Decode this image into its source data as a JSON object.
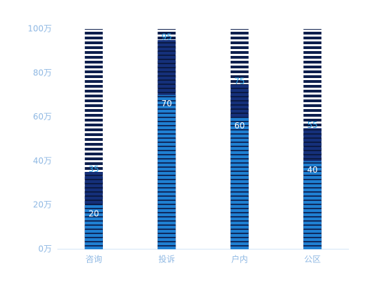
{
  "chart_data": {
    "type": "bar",
    "categories": [
      "咨询",
      "投诉",
      "户内",
      "公区"
    ],
    "series": [
      {
        "color": "#15307a",
        "stripe_color": "#0b1a45",
        "label_color": "#2aa2ea",
        "label_position": "top",
        "values": [
          35,
          95,
          75,
          55
        ]
      },
      {
        "color": "#1f80d2",
        "stripe_color": "#0f2a5e",
        "label_color": "#ffffff",
        "label_position": "inside",
        "values": [
          20,
          70,
          60,
          40
        ]
      }
    ],
    "background_bar_color": "#0e1f4d",
    "ylim": [
      0,
      100
    ],
    "yticks": [
      {
        "value": 0,
        "label": "0万"
      },
      {
        "value": 20,
        "label": "20万"
      },
      {
        "value": 40,
        "label": "40万"
      },
      {
        "value": 60,
        "label": "60万"
      },
      {
        "value": 80,
        "label": "80万"
      },
      {
        "value": 100,
        "label": "100万"
      }
    ],
    "axis_color": "#8fb8e3"
  }
}
